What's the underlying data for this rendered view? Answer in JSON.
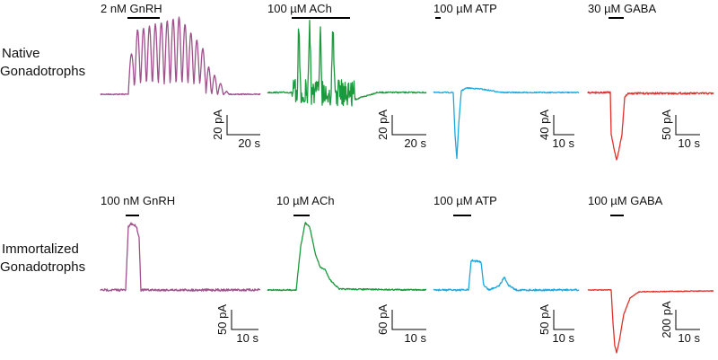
{
  "rows": [
    {
      "label_lines": [
        "Native",
        "Gonadotrophs"
      ],
      "panels": [
        {
          "stimulus": "2 nM GnRH",
          "scale_y": "20 pA",
          "scale_x": "20 s"
        },
        {
          "stimulus": "100 µM ACh",
          "scale_y": "20 pA",
          "scale_x": "20 s"
        },
        {
          "stimulus": "100 µM ATP",
          "scale_y": "40 pA",
          "scale_x": "10 s"
        },
        {
          "stimulus": "30 µM GABA",
          "scale_y": "50 pA",
          "scale_x": "10 s"
        }
      ]
    },
    {
      "label_lines": [
        "Immortalized",
        "Gonadotrophs"
      ],
      "panels": [
        {
          "stimulus": "100 nM GnRH",
          "scale_y": "50 pA",
          "scale_x": "10 s"
        },
        {
          "stimulus": "10 µM ACh",
          "scale_y": "60 pA",
          "scale_x": "10 s"
        },
        {
          "stimulus": "100 µM ATP",
          "scale_y": "50 pA",
          "scale_x": "10 s"
        },
        {
          "stimulus": "100 µM GABA",
          "scale_y": "200 pA",
          "scale_x": "10 s"
        }
      ]
    }
  ]
}
